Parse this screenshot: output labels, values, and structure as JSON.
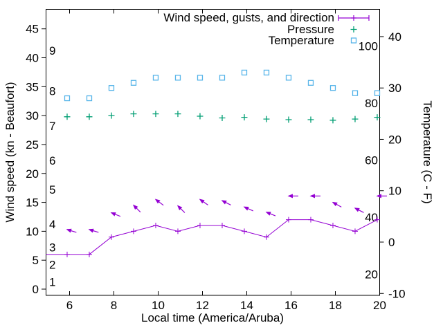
{
  "chart_data": {
    "type": "line",
    "description": "Weather observation plot: wind speed/gusts/direction, pressure and temperature versus local time",
    "x_hours": [
      5.89,
      6.89,
      7.89,
      8.89,
      9.89,
      10.89,
      11.89,
      12.89,
      13.89,
      14.89,
      15.89,
      16.89,
      17.89,
      18.89,
      19.89
    ],
    "series": [
      {
        "name": "Wind speed, gusts, and direction",
        "type": "line-with-gust-arrows",
        "color": "#9400d3",
        "wind_speed_kn": [
          6,
          6,
          9,
          10,
          11,
          10,
          11,
          11,
          10,
          9,
          12,
          12,
          11,
          10,
          12
        ],
        "line_enters_left_edge_at_kn": 6,
        "gusts_kn": [
          10.3,
          10.3,
          13.2,
          14.5,
          15.5,
          14.4,
          15.5,
          15.3,
          14.2,
          13.3,
          16.1,
          16.1,
          15.0,
          14.0,
          16.1
        ],
        "wind_direction_from_deg": [
          107,
          107,
          112,
          135,
          127,
          135,
          125,
          117,
          114,
          112,
          90,
          90,
          119,
          117,
          90
        ]
      },
      {
        "name": "Pressure",
        "type": "points",
        "marker": "plus",
        "color": "#009e73",
        "values_on_left_axis": [
          29.8,
          29.8,
          30.0,
          30.3,
          30.3,
          30.3,
          29.9,
          29.6,
          29.7,
          29.4,
          29.3,
          29.3,
          29.2,
          29.4,
          29.7
        ]
      },
      {
        "name": "Temperature",
        "type": "points",
        "marker": "open-square",
        "color": "#56b4e9",
        "values_c": [
          28,
          28,
          30,
          31,
          32,
          32,
          32,
          32,
          33,
          33,
          32,
          31,
          30,
          29,
          29
        ]
      }
    ],
    "axes": {
      "x": {
        "label": "Local time (America/Aruba)",
        "ticks": [
          6,
          8,
          10,
          12,
          14,
          16,
          18,
          20
        ],
        "range": [
          4.92,
          20
        ]
      },
      "y1": {
        "label": "Wind speed (kn - Beaufort)",
        "ticks": [
          0,
          5,
          10,
          15,
          20,
          25,
          30,
          35,
          40,
          45
        ],
        "beaufort": {
          "values_kn": [
            1,
            4,
            7,
            11,
            17,
            22,
            28,
            34,
            41
          ],
          "labels": [
            "1",
            "2",
            "3",
            "4",
            "5",
            "6",
            "7",
            "8",
            "9"
          ]
        }
      },
      "y2": {
        "label": "Temperature (C - F)",
        "ticks_c": [
          -10,
          0,
          10,
          20,
          30,
          40
        ],
        "fahrenheit_inner_labels": [
          20,
          40,
          60,
          80,
          100
        ]
      }
    },
    "legend": {
      "position": "top-right-inside",
      "rows": [
        {
          "label": "Wind speed, gusts, and direction",
          "series": "wind"
        },
        {
          "label": "Pressure",
          "series": "pressure"
        },
        {
          "label": "Temperature",
          "series": "temperature"
        }
      ]
    },
    "grid": false,
    "colors": {
      "wind": "#9400d3",
      "pressure": "#009e73",
      "temperature": "#56b4e9",
      "axis": "#000000",
      "background": "#ffffff"
    }
  }
}
